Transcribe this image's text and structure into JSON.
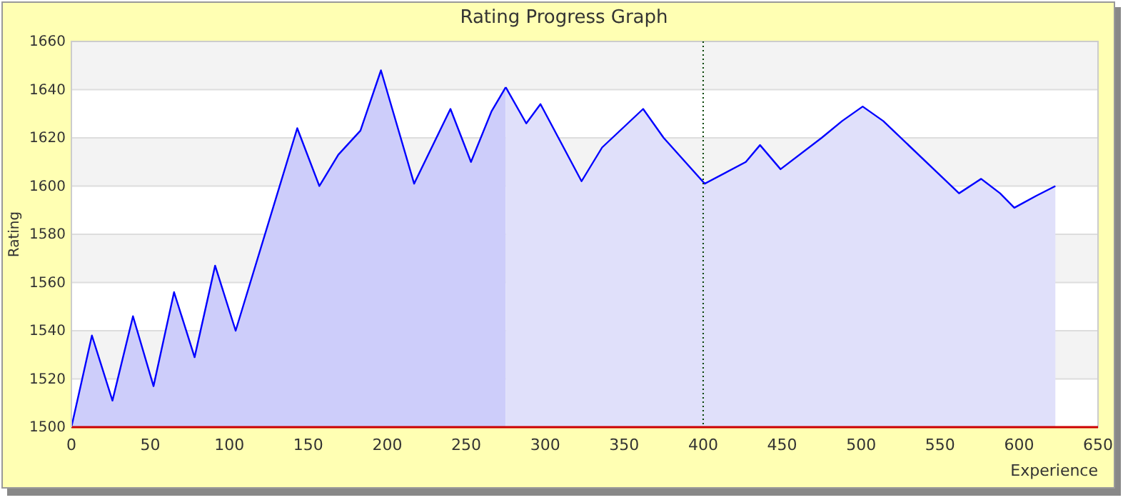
{
  "chart_data": {
    "type": "area",
    "title": "Rating Progress Graph",
    "xlabel": "Experience",
    "ylabel": "Rating",
    "xlim": [
      0,
      650
    ],
    "xticks": [
      0,
      50,
      100,
      150,
      200,
      250,
      300,
      350,
      400,
      450,
      500,
      550,
      600,
      650
    ],
    "ylim": [
      1500,
      1660
    ],
    "yticks": [
      1500,
      1520,
      1540,
      1560,
      1580,
      1600,
      1620,
      1640,
      1660
    ],
    "grid": "y",
    "ref_lines": [
      {
        "axis": "x",
        "value": 400,
        "label": null,
        "color": "#004000",
        "line_style": "dotted"
      }
    ],
    "series": [
      {
        "color": "#cdcdfa",
        "x": [
          0,
          13,
          26,
          39,
          52,
          65,
          78,
          91,
          104,
          143,
          157,
          169,
          183,
          196,
          217,
          240,
          253,
          266,
          275
        ],
        "values": [
          1500,
          1538,
          1511,
          1546,
          1517,
          1556,
          1529,
          1567,
          1540,
          1624,
          1600,
          1613,
          1623,
          1648,
          1601,
          1632,
          1610,
          1631,
          1641
        ]
      },
      {
        "color": "#e0e0fa",
        "x": [
          275,
          288,
          297,
          323,
          336,
          362,
          375,
          401,
          427,
          436,
          449,
          475,
          488,
          501,
          514,
          562,
          576,
          588,
          597,
          611,
          623
        ],
        "values": [
          1641,
          1626,
          1634,
          1602,
          1616,
          1632,
          1620,
          1601,
          1610,
          1617,
          1607,
          1620,
          1627,
          1633,
          1627,
          1597,
          1603,
          1597,
          1591,
          1596,
          1600
        ]
      }
    ]
  }
}
